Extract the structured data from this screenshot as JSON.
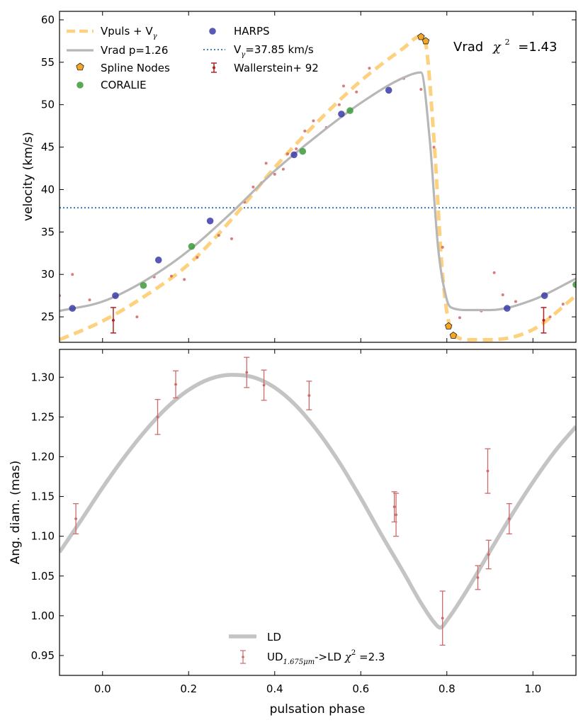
{
  "chart_data": [
    {
      "type": "line",
      "ylabel": "velocity (km/s)",
      "xlim": [
        -0.1,
        1.1
      ],
      "ylim": [
        22,
        61
      ],
      "xticks": [
        0.0,
        0.2,
        0.4,
        0.6,
        0.8,
        1.0
      ],
      "xtick_labels": [
        "0.0",
        "0.2",
        "0.4",
        "0.6",
        "0.8",
        "1.0"
      ],
      "yticks": [
        25,
        30,
        35,
        40,
        45,
        50,
        55,
        60
      ],
      "ytick_labels": [
        "25",
        "30",
        "35",
        "40",
        "45",
        "50",
        "55",
        "60"
      ],
      "annotation": {
        "label": "Vrad",
        "chi": "χ",
        "sup": "2",
        "value": "=1.43"
      },
      "legend": {
        "vpuls": {
          "label": "Vpuls + V",
          "sub": "γ"
        },
        "vrad": {
          "label": "Vrad p=1.26"
        },
        "nodes": {
          "label": "Spline Nodes"
        },
        "coralie": {
          "label": "CORALIE"
        },
        "harps": {
          "label": "HARPS"
        },
        "vgamma": {
          "label": "V",
          "sub": "γ",
          "rest": "=37.85 km/s"
        },
        "waller": {
          "label": "Wallerstein+ 92"
        }
      },
      "colors": {
        "vpuls": "#fdd17e",
        "vrad": "#b7b7b7",
        "nodes": "#f5a623",
        "coralie": "#3c9a3c",
        "harps": "#3b3ba8",
        "vgamma": "#2b6fb5",
        "small": "#cd5c5c",
        "waller": "#b22222"
      },
      "vgamma": 37.85,
      "series": [
        {
          "name": "Vpuls + Vγ",
          "x": [
            -0.1,
            0.0,
            0.1,
            0.2,
            0.3,
            0.4,
            0.5,
            0.6,
            0.7,
            0.74,
            0.75,
            0.77,
            0.79,
            0.81,
            0.85,
            0.9,
            1.0,
            1.1
          ],
          "y": [
            22.3,
            24.5,
            27.5,
            31.2,
            36.5,
            42.6,
            48.0,
            52.8,
            56.7,
            58.1,
            57.4,
            46.0,
            30.0,
            23.5,
            22.3,
            22.3,
            23.5,
            27.5
          ]
        },
        {
          "name": "Vrad p=1.26",
          "x": [
            -0.1,
            0.0,
            0.1,
            0.2,
            0.3,
            0.4,
            0.5,
            0.6,
            0.7,
            0.74,
            0.76,
            0.78,
            0.8,
            0.81,
            0.85,
            0.9,
            1.0,
            1.1
          ],
          "y": [
            25.7,
            26.8,
            29.3,
            32.8,
            37.3,
            42.2,
            46.4,
            50.2,
            53.2,
            53.8,
            46.0,
            33.0,
            27.0,
            26.1,
            25.8,
            25.8,
            27.0,
            29.5
          ]
        }
      ],
      "spline_nodes": {
        "x": [
          0.74,
          0.751,
          0.804,
          0.815
        ],
        "y": [
          58.0,
          57.5,
          23.9,
          22.8
        ]
      },
      "coralie": {
        "x": [
          0.095,
          0.207,
          0.465,
          0.575,
          1.1
        ],
        "y": [
          28.7,
          33.3,
          44.5,
          49.3,
          28.8
        ]
      },
      "harps": {
        "x": [
          -0.07,
          0.03,
          0.13,
          0.25,
          0.445,
          0.555,
          0.665,
          0.94,
          1.027
        ],
        "y": [
          26.0,
          27.5,
          31.7,
          36.3,
          44.1,
          48.9,
          51.7,
          26.0,
          27.5
        ]
      },
      "wallerstein": {
        "x": [
          0.025,
          1.025
        ],
        "y": [
          24.6,
          24.6
        ],
        "err": [
          1.5,
          1.5
        ]
      },
      "small_points": {
        "x": [
          -0.1,
          -0.07,
          -0.03,
          0.08,
          0.12,
          0.16,
          0.19,
          0.22,
          0.27,
          0.3,
          0.33,
          0.35,
          0.37,
          0.38,
          0.4,
          0.42,
          0.43,
          0.45,
          0.47,
          0.49,
          0.52,
          0.55,
          0.56,
          0.59,
          0.62,
          0.7,
          0.74,
          0.77,
          0.79,
          0.83,
          0.88,
          0.91,
          0.93,
          0.96,
          1.04,
          1.07
        ],
        "y": [
          27.5,
          30.0,
          27.0,
          25.0,
          29.7,
          29.8,
          29.4,
          32.0,
          34.6,
          34.2,
          38.5,
          40.3,
          40.8,
          43.1,
          41.8,
          42.4,
          44.2,
          44.8,
          46.9,
          48.1,
          47.3,
          50.0,
          52.2,
          51.5,
          54.3,
          53.1,
          51.8,
          45.0,
          33.2,
          24.9,
          25.7,
          30.2,
          27.6,
          26.8,
          25.0,
          26.5
        ]
      }
    },
    {
      "type": "line",
      "xlabel": "pulsation phase",
      "ylabel": "Ang. diam. (mas)",
      "xlim": [
        -0.1,
        1.1
      ],
      "ylim": [
        0.925,
        1.335
      ],
      "xticks": [
        0.0,
        0.2,
        0.4,
        0.6,
        0.8,
        1.0
      ],
      "xtick_labels": [
        "0.0",
        "0.2",
        "0.4",
        "0.6",
        "0.8",
        "1.0"
      ],
      "yticks": [
        0.95,
        1.0,
        1.05,
        1.1,
        1.15,
        1.2,
        1.25,
        1.3
      ],
      "ytick_labels": [
        "0.95",
        "1.00",
        "1.05",
        "1.10",
        "1.15",
        "1.20",
        "1.25",
        "1.30"
      ],
      "legend": {
        "ld": {
          "label": "LD"
        },
        "ud": {
          "pre": "UD",
          "sub": "1.675μm",
          "mid": "->LD ",
          "chi": "χ",
          "sup": "2",
          "post": " =2.3"
        }
      },
      "colors": {
        "ld": "#c4c4c4",
        "err": "#cd6b6b"
      },
      "series": [
        {
          "name": "LD",
          "x": [
            -0.1,
            -0.05,
            0.0,
            0.05,
            0.1,
            0.15,
            0.2,
            0.25,
            0.3,
            0.35,
            0.4,
            0.45,
            0.5,
            0.55,
            0.6,
            0.65,
            0.7,
            0.74,
            0.77,
            0.785,
            0.8,
            0.85,
            0.9,
            0.95,
            1.0,
            1.05,
            1.1
          ],
          "y": [
            1.08,
            1.12,
            1.161,
            1.199,
            1.233,
            1.262,
            1.284,
            1.298,
            1.303,
            1.3,
            1.287,
            1.264,
            1.232,
            1.193,
            1.148,
            1.1,
            1.054,
            1.016,
            0.992,
            0.985,
            0.994,
            1.035,
            1.081,
            1.126,
            1.168,
            1.206,
            1.238
          ]
        }
      ],
      "points": {
        "x": [
          -0.062,
          0.128,
          0.17,
          0.335,
          0.375,
          0.48,
          0.678,
          0.682,
          0.79,
          0.872,
          0.895,
          0.897,
          0.945
        ],
        "y": [
          1.122,
          1.25,
          1.291,
          1.306,
          1.29,
          1.277,
          1.137,
          1.127,
          0.997,
          1.048,
          1.182,
          1.077,
          1.122
        ],
        "err": [
          0.019,
          0.022,
          0.017,
          0.019,
          0.019,
          0.018,
          0.019,
          0.027,
          0.034,
          0.015,
          0.028,
          0.018,
          0.019
        ]
      }
    }
  ]
}
